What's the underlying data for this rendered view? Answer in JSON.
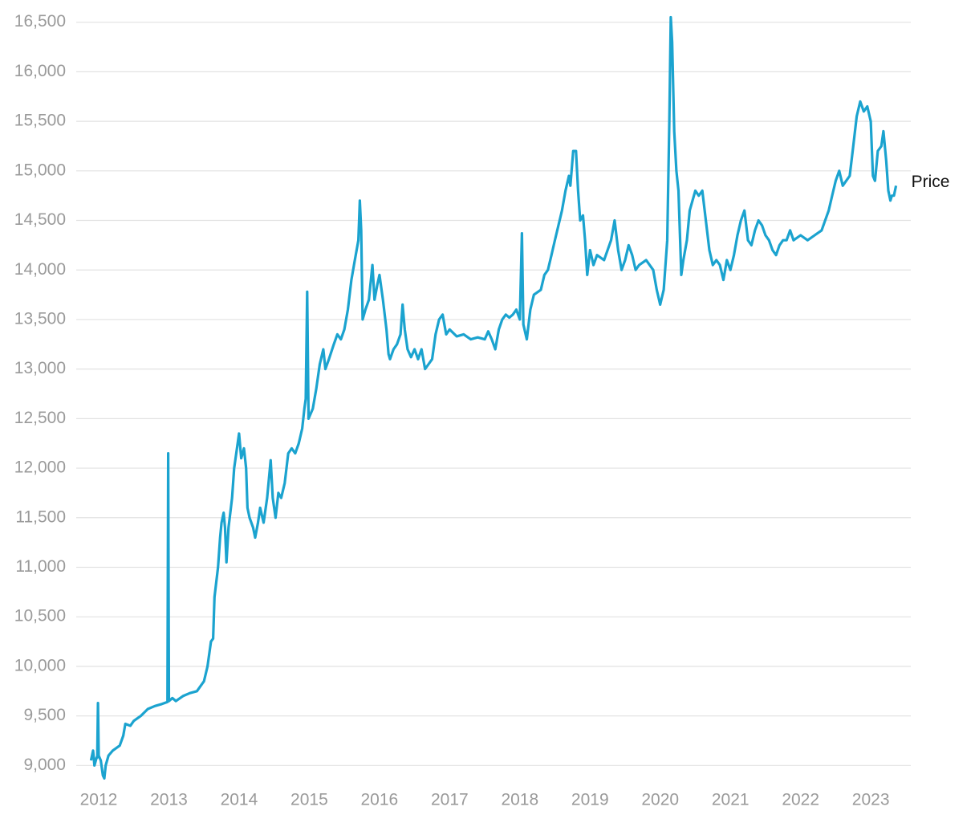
{
  "chart_data": {
    "type": "line",
    "x": [
      2011.89,
      2011.92,
      2011.94,
      2011.97,
      2011.98,
      2011.99,
      2012.0,
      2012.03,
      2012.06,
      2012.08,
      2012.1,
      2012.14,
      2012.2,
      2012.3,
      2012.35,
      2012.38,
      2012.45,
      2012.5,
      2012.6,
      2012.7,
      2012.8,
      2012.9,
      2012.98,
      2012.99,
      2013.0,
      2013.05,
      2013.1,
      2013.2,
      2013.3,
      2013.4,
      2013.5,
      2013.55,
      2013.6,
      2013.63,
      2013.65,
      2013.7,
      2013.73,
      2013.75,
      2013.78,
      2013.8,
      2013.82,
      2013.85,
      2013.9,
      2013.93,
      2013.97,
      2014.0,
      2014.03,
      2014.07,
      2014.1,
      2014.12,
      2014.15,
      2014.2,
      2014.23,
      2014.27,
      2014.3,
      2014.35,
      2014.4,
      2014.45,
      2014.48,
      2014.52,
      2014.56,
      2014.6,
      2014.65,
      2014.7,
      2014.75,
      2014.8,
      2014.85,
      2014.9,
      2014.93,
      2014.95,
      2014.97,
      2014.99,
      2015.05,
      2015.1,
      2015.15,
      2015.2,
      2015.23,
      2015.28,
      2015.35,
      2015.4,
      2015.45,
      2015.5,
      2015.55,
      2015.6,
      2015.65,
      2015.7,
      2015.72,
      2015.74,
      2015.76,
      2015.8,
      2015.85,
      2015.9,
      2015.93,
      2015.97,
      2016.0,
      2016.05,
      2016.1,
      2016.13,
      2016.15,
      2016.2,
      2016.25,
      2016.3,
      2016.33,
      2016.36,
      2016.4,
      2016.45,
      2016.5,
      2016.55,
      2016.6,
      2016.65,
      2016.7,
      2016.75,
      2016.8,
      2016.85,
      2016.9,
      2016.95,
      2017.0,
      2017.1,
      2017.2,
      2017.3,
      2017.4,
      2017.5,
      2017.55,
      2017.6,
      2017.65,
      2017.7,
      2017.75,
      2017.8,
      2017.85,
      2017.9,
      2017.95,
      2018.0,
      2018.03,
      2018.05,
      2018.1,
      2018.15,
      2018.2,
      2018.3,
      2018.35,
      2018.4,
      2018.45,
      2018.5,
      2018.55,
      2018.6,
      2018.65,
      2018.7,
      2018.72,
      2018.76,
      2018.8,
      2018.83,
      2018.86,
      2018.9,
      2018.93,
      2018.96,
      2019.0,
      2019.05,
      2019.1,
      2019.2,
      2019.3,
      2019.35,
      2019.4,
      2019.45,
      2019.5,
      2019.55,
      2019.6,
      2019.65,
      2019.7,
      2019.8,
      2019.9,
      2019.95,
      2020.0,
      2020.05,
      2020.1,
      2020.13,
      2020.15,
      2020.17,
      2020.2,
      2020.23,
      2020.26,
      2020.3,
      2020.33,
      2020.38,
      2020.42,
      2020.46,
      2020.5,
      2020.55,
      2020.6,
      2020.65,
      2020.7,
      2020.75,
      2020.8,
      2020.85,
      2020.9,
      2020.95,
      2021.0,
      2021.05,
      2021.1,
      2021.15,
      2021.2,
      2021.25,
      2021.3,
      2021.35,
      2021.4,
      2021.45,
      2021.5,
      2021.55,
      2021.6,
      2021.65,
      2021.7,
      2021.75,
      2021.8,
      2021.85,
      2021.9,
      2022.0,
      2022.1,
      2022.2,
      2022.3,
      2022.35,
      2022.4,
      2022.45,
      2022.5,
      2022.55,
      2022.6,
      2022.65,
      2022.7,
      2022.75,
      2022.8,
      2022.85,
      2022.9,
      2022.95,
      2023.0,
      2023.03,
      2023.06,
      2023.1,
      2023.15,
      2023.18,
      2023.22,
      2023.25,
      2023.28,
      2023.3,
      2023.33,
      2023.36
    ],
    "series": [
      {
        "name": "Price",
        "color": "#1ba3cf",
        "values": [
          9050,
          9150,
          9000,
          9080,
          9080,
          9630,
          9100,
          9050,
          8900,
          8870,
          9000,
          9100,
          9150,
          9200,
          9300,
          9420,
          9400,
          9450,
          9500,
          9570,
          9600,
          9620,
          9640,
          12150,
          9650,
          9680,
          9650,
          9700,
          9730,
          9750,
          9850,
          10000,
          10250,
          10280,
          10700,
          11000,
          11300,
          11450,
          11550,
          11400,
          11050,
          11400,
          11700,
          12000,
          12200,
          12350,
          12100,
          12200,
          12000,
          11600,
          11500,
          11400,
          11300,
          11450,
          11600,
          11450,
          11700,
          12080,
          11700,
          11500,
          11750,
          11700,
          11850,
          12150,
          12200,
          12150,
          12250,
          12400,
          12600,
          12700,
          13780,
          12500,
          12600,
          12800,
          13050,
          13200,
          13000,
          13100,
          13250,
          13350,
          13300,
          13400,
          13600,
          13900,
          14100,
          14300,
          14700,
          14400,
          13500,
          13600,
          13700,
          14050,
          13700,
          13850,
          13950,
          13700,
          13400,
          13150,
          13100,
          13200,
          13250,
          13350,
          13650,
          13400,
          13200,
          13120,
          13200,
          13100,
          13200,
          13000,
          13050,
          13100,
          13350,
          13500,
          13550,
          13350,
          13400,
          13330,
          13350,
          13300,
          13320,
          13300,
          13380,
          13300,
          13200,
          13400,
          13500,
          13550,
          13520,
          13550,
          13600,
          13500,
          14370,
          13450,
          13300,
          13600,
          13750,
          13800,
          13950,
          14000,
          14150,
          14300,
          14450,
          14600,
          14800,
          14950,
          14850,
          15200,
          15200,
          14800,
          14500,
          14550,
          14300,
          13950,
          14200,
          14050,
          14150,
          14100,
          14300,
          14500,
          14200,
          14000,
          14100,
          14250,
          14150,
          14000,
          14050,
          14100,
          14000,
          13800,
          13650,
          13800,
          14300,
          15500,
          16550,
          16300,
          15400,
          15000,
          14800,
          13950,
          14100,
          14300,
          14600,
          14700,
          14800,
          14750,
          14800,
          14500,
          14200,
          14050,
          14100,
          14050,
          13900,
          14100,
          14000,
          14150,
          14350,
          14500,
          14600,
          14300,
          14250,
          14400,
          14500,
          14450,
          14350,
          14300,
          14200,
          14150,
          14250,
          14300,
          14300,
          14400,
          14300,
          14350,
          14300,
          14350,
          14400,
          14500,
          14600,
          14750,
          14900,
          15000,
          14850,
          14900,
          14950,
          15250,
          15550,
          15700,
          15600,
          15650,
          15500,
          14950,
          14900,
          15200,
          15250,
          15400,
          15100,
          14800,
          14700,
          14750,
          14750,
          14850
        ]
      }
    ],
    "xlim": [
      2011.68,
      2023.57
    ],
    "xticks": [
      2012,
      2013,
      2014,
      2015,
      2016,
      2017,
      2018,
      2019,
      2020,
      2021,
      2022,
      2023
    ],
    "ylim": [
      8800,
      16700
    ],
    "yticks": [
      {
        "value": 9000,
        "label": "9,000"
      },
      {
        "value": 9500,
        "label": "9,500"
      },
      {
        "value": 10000,
        "label": "10,000"
      },
      {
        "value": 10500,
        "label": "10,500"
      },
      {
        "value": 11000,
        "label": "11,000"
      },
      {
        "value": 11500,
        "label": "11,500"
      },
      {
        "value": 12000,
        "label": "12,000"
      },
      {
        "value": 12500,
        "label": "12,500"
      },
      {
        "value": 13000,
        "label": "13,000"
      },
      {
        "value": 13500,
        "label": "13,500"
      },
      {
        "value": 14000,
        "label": "14,000"
      },
      {
        "value": 14500,
        "label": "14,500"
      },
      {
        "value": 15000,
        "label": "15,000"
      },
      {
        "value": 15500,
        "label": "15,500"
      },
      {
        "value": 16000,
        "label": "16,000"
      },
      {
        "value": 16500,
        "label": "16,500"
      }
    ],
    "grid": true
  }
}
